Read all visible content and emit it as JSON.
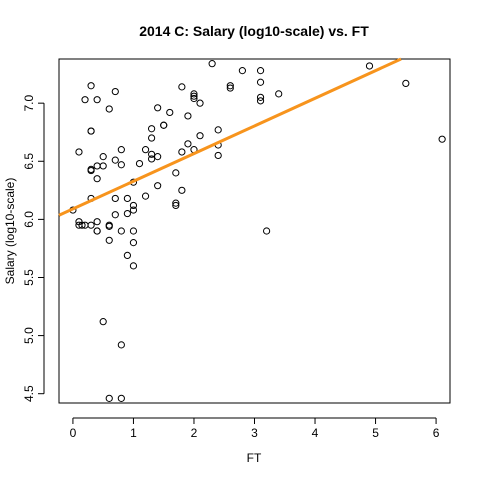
{
  "chart_data": {
    "type": "scatter",
    "title": "2014 C: Salary (log10-scale) vs. FT",
    "xlabel": "FT",
    "ylabel": "Salary (log10-scale)",
    "xlim": [
      -0.23,
      6.23
    ],
    "ylim": [
      4.42,
      7.38
    ],
    "xticks": [
      0,
      1,
      2,
      3,
      4,
      5,
      6
    ],
    "yticks": [
      4.5,
      5.0,
      5.5,
      6.0,
      6.5,
      7.0
    ],
    "ytick_labels": [
      "4.5",
      "5.0",
      "5.5",
      "6.0",
      "6.5",
      "7.0"
    ],
    "grid": false,
    "legend": "none",
    "point_color": "#000000",
    "fit_line": {
      "color": "#f7941d",
      "intercept": 6.09,
      "slope": 0.238
    },
    "points": [
      [
        0.0,
        6.08
      ],
      [
        0.1,
        6.58
      ],
      [
        0.1,
        5.98
      ],
      [
        0.1,
        5.95
      ],
      [
        0.15,
        5.95
      ],
      [
        0.2,
        5.95
      ],
      [
        0.2,
        7.03
      ],
      [
        0.3,
        7.15
      ],
      [
        0.3,
        6.76
      ],
      [
        0.3,
        6.76
      ],
      [
        0.3,
        6.43
      ],
      [
        0.3,
        6.42
      ],
      [
        0.3,
        6.18
      ],
      [
        0.3,
        5.95
      ],
      [
        0.4,
        7.03
      ],
      [
        0.4,
        6.46
      ],
      [
        0.4,
        6.35
      ],
      [
        0.4,
        5.98
      ],
      [
        0.4,
        5.9
      ],
      [
        0.4,
        5.9
      ],
      [
        0.5,
        6.54
      ],
      [
        0.5,
        6.46
      ],
      [
        0.5,
        5.12
      ],
      [
        0.6,
        6.95
      ],
      [
        0.6,
        5.95
      ],
      [
        0.6,
        5.94
      ],
      [
        0.6,
        5.82
      ],
      [
        0.6,
        4.46
      ],
      [
        0.7,
        7.1
      ],
      [
        0.7,
        6.51
      ],
      [
        0.7,
        6.18
      ],
      [
        0.7,
        6.04
      ],
      [
        0.8,
        6.6
      ],
      [
        0.8,
        6.47
      ],
      [
        0.8,
        5.9
      ],
      [
        0.8,
        4.92
      ],
      [
        0.8,
        4.46
      ],
      [
        0.9,
        6.05
      ],
      [
        0.9,
        6.18
      ],
      [
        0.9,
        5.69
      ],
      [
        1.0,
        6.32
      ],
      [
        1.0,
        6.12
      ],
      [
        1.0,
        6.08
      ],
      [
        1.0,
        5.9
      ],
      [
        1.0,
        5.8
      ],
      [
        1.0,
        5.6
      ],
      [
        1.1,
        6.48
      ],
      [
        1.2,
        6.6
      ],
      [
        1.2,
        6.2
      ],
      [
        1.3,
        6.78
      ],
      [
        1.3,
        6.7
      ],
      [
        1.3,
        6.56
      ],
      [
        1.3,
        6.52
      ],
      [
        1.4,
        6.96
      ],
      [
        1.4,
        6.54
      ],
      [
        1.4,
        6.29
      ],
      [
        1.5,
        6.81
      ],
      [
        1.5,
        6.81
      ],
      [
        1.6,
        6.92
      ],
      [
        1.7,
        6.4
      ],
      [
        1.7,
        6.14
      ],
      [
        1.7,
        6.12
      ],
      [
        1.8,
        7.14
      ],
      [
        1.8,
        6.58
      ],
      [
        1.8,
        6.25
      ],
      [
        1.9,
        6.89
      ],
      [
        1.9,
        6.65
      ],
      [
        2.0,
        7.08
      ],
      [
        2.0,
        7.06
      ],
      [
        2.0,
        7.04
      ],
      [
        2.0,
        6.6
      ],
      [
        2.1,
        7.0
      ],
      [
        2.1,
        6.72
      ],
      [
        2.3,
        7.34
      ],
      [
        2.4,
        6.77
      ],
      [
        2.4,
        6.64
      ],
      [
        2.4,
        6.55
      ],
      [
        2.6,
        7.15
      ],
      [
        2.6,
        7.13
      ],
      [
        2.8,
        7.28
      ],
      [
        3.1,
        7.28
      ],
      [
        3.1,
        7.18
      ],
      [
        3.1,
        7.05
      ],
      [
        3.1,
        7.02
      ],
      [
        3.2,
        5.9
      ],
      [
        3.4,
        7.08
      ],
      [
        4.9,
        7.32
      ],
      [
        5.5,
        7.17
      ],
      [
        6.1,
        6.69
      ]
    ]
  }
}
